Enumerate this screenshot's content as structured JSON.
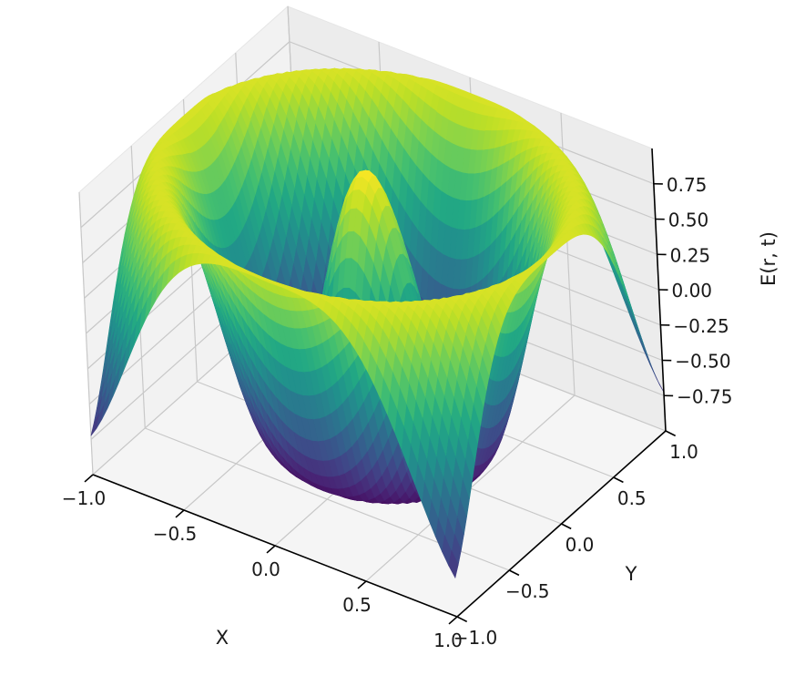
{
  "chart_data": {
    "type": "surface3d",
    "title": "",
    "colormap": "viridis",
    "surface": {
      "grid_steps": 60,
      "x_range": [
        -1.0,
        1.0
      ],
      "y_range": [
        -1.0,
        1.0
      ],
      "z_range": [
        -1.0,
        1.0
      ]
    },
    "axes": {
      "x": {
        "label": "X",
        "ticks": [
          {
            "value": -1.0,
            "label": "−1.0"
          },
          {
            "value": -0.5,
            "label": "−0.5"
          },
          {
            "value": 0.0,
            "label": "0.0"
          },
          {
            "value": 0.5,
            "label": "0.5"
          },
          {
            "value": 1.0,
            "label": "1.0"
          }
        ]
      },
      "y": {
        "label": "Y",
        "ticks": [
          {
            "value": -1.0,
            "label": "−1.0"
          },
          {
            "value": -0.5,
            "label": "−0.5"
          },
          {
            "value": 0.0,
            "label": "0.0"
          },
          {
            "value": 0.5,
            "label": "0.5"
          },
          {
            "value": 1.0,
            "label": "1.0"
          }
        ]
      },
      "z": {
        "label": "E(r, t)",
        "ticks": [
          {
            "value": -0.75,
            "label": "−0.75"
          },
          {
            "value": -0.5,
            "label": "−0.50"
          },
          {
            "value": -0.25,
            "label": "−0.25"
          },
          {
            "value": 0.0,
            "label": "0.00"
          },
          {
            "value": 0.25,
            "label": "0.25"
          },
          {
            "value": 0.5,
            "label": "0.50"
          },
          {
            "value": 0.75,
            "label": "0.75"
          }
        ]
      }
    },
    "grid": true,
    "pane_color": "#f2f2f2",
    "grid_color": "#c8c8c8"
  }
}
